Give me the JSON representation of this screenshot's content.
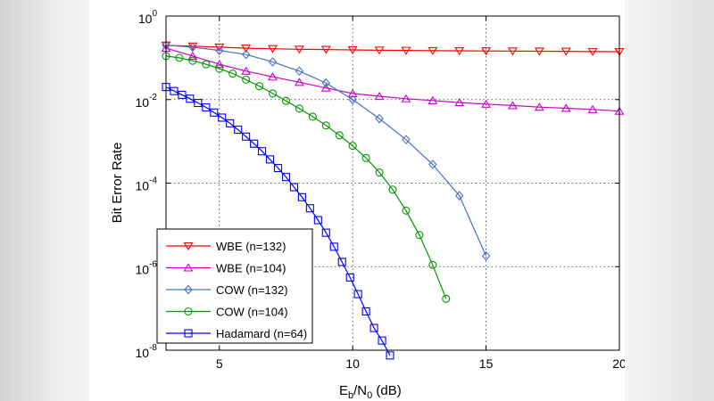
{
  "chart_data": {
    "type": "line",
    "xlabel": "Eb/N0 (dB)",
    "xlabel_parts": {
      "base1": "E",
      "sub1": "b",
      "sep": "/N",
      "sub2": "0",
      "unit": " (dB)"
    },
    "ylabel": "Bit Error Rate",
    "xlim": [
      3,
      20
    ],
    "ylim": [
      1e-08,
      1
    ],
    "y_scale": "log",
    "grid": true,
    "legend_position": "bottom-left",
    "x_ticks": [
      5,
      10,
      15,
      20
    ],
    "y_ticks": [
      {
        "base": "10",
        "exp": "0",
        "value": 1
      },
      {
        "base": "10",
        "exp": "-2",
        "value": 0.01
      },
      {
        "base": "10",
        "exp": "-4",
        "value": 0.0001
      },
      {
        "base": "10",
        "exp": "-6",
        "value": 1e-06
      },
      {
        "base": "10",
        "exp": "-8",
        "value": 1e-08
      }
    ],
    "series": [
      {
        "name": "WBE (n=132)",
        "color": "#ff0000",
        "marker": "triangle-down",
        "x": [
          3,
          4,
          5,
          6,
          7,
          8,
          9,
          10,
          11,
          12,
          13,
          14,
          15,
          16,
          17,
          18,
          19,
          20
        ],
        "y": [
          0.2,
          0.19,
          0.18,
          0.17,
          0.165,
          0.16,
          0.158,
          0.155,
          0.152,
          0.15,
          0.148,
          0.147,
          0.146,
          0.145,
          0.144,
          0.143,
          0.141,
          0.14
        ]
      },
      {
        "name": "WBE (n=104)",
        "color": "#cc00cc",
        "marker": "triangle-up",
        "x": [
          3,
          4,
          5,
          6,
          7,
          8,
          9,
          10,
          11,
          12,
          13,
          14,
          15,
          16,
          17,
          18,
          19,
          20
        ],
        "y": [
          0.17,
          0.11,
          0.07,
          0.048,
          0.035,
          0.026,
          0.019,
          0.014,
          0.012,
          0.0105,
          0.0095,
          0.0085,
          0.0078,
          0.0072,
          0.0066,
          0.0062,
          0.0058,
          0.0053
        ]
      },
      {
        "name": "COW (n=132)",
        "color": "#4a6fc0",
        "marker": "diamond",
        "x": [
          3,
          4,
          5,
          6,
          7,
          8,
          9,
          10,
          11,
          12,
          13,
          14,
          15
        ],
        "y": [
          0.2,
          0.18,
          0.15,
          0.12,
          0.08,
          0.048,
          0.025,
          0.01,
          0.0035,
          0.0011,
          0.00028,
          5e-05,
          1.8e-06
        ]
      },
      {
        "name": "COW (n=104)",
        "color": "#009900",
        "marker": "circle",
        "x": [
          3,
          3.5,
          4,
          4.5,
          5,
          5.5,
          6,
          6.5,
          7,
          7.5,
          8,
          8.5,
          9,
          9.5,
          10,
          10.5,
          11,
          11.5,
          12,
          12.5,
          13,
          13.5
        ],
        "y": [
          0.11,
          0.1,
          0.085,
          0.07,
          0.055,
          0.042,
          0.03,
          0.021,
          0.014,
          0.0093,
          0.0061,
          0.0039,
          0.0024,
          0.0014,
          0.00078,
          0.0004,
          0.00018,
          7e-05,
          2.2e-05,
          5.7e-06,
          1.1e-06,
          1.7e-07
        ]
      },
      {
        "name": "Hadamard (n=64)",
        "color": "#0000ff",
        "marker": "square",
        "x": [
          3,
          3.3,
          3.6,
          3.9,
          4.2,
          4.5,
          4.8,
          5.1,
          5.4,
          5.7,
          6,
          6.3,
          6.6,
          6.9,
          7.2,
          7.5,
          7.8,
          8.1,
          8.4,
          8.7,
          9,
          9.3,
          9.6,
          9.9,
          10.2,
          10.5,
          10.8,
          11.1,
          11.4
        ],
        "y": [
          0.02,
          0.016,
          0.013,
          0.0105,
          0.0083,
          0.0065,
          0.0049,
          0.0037,
          0.0027,
          0.0019,
          0.0013,
          0.00088,
          0.00058,
          0.00037,
          0.00023,
          0.00014,
          8e-05,
          4.6e-05,
          2.5e-05,
          1.3e-05,
          6.5e-06,
          3e-06,
          1.3e-06,
          5.5e-07,
          2.2e-07,
          8.5e-08,
          3.4e-08,
          1.7e-08,
          7.5e-09
        ]
      }
    ]
  }
}
